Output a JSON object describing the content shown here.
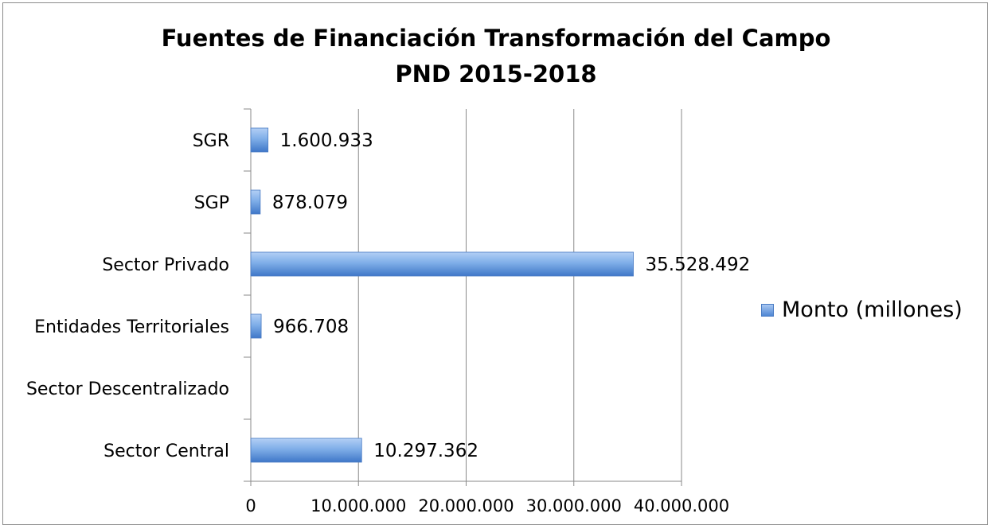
{
  "chart_data": {
    "type": "bar",
    "orientation": "horizontal",
    "title": [
      "Fuentes de Financiación Transformación del Campo",
      "PND 2015-2018"
    ],
    "categories": [
      "SGR",
      "SGP",
      "Sector Privado",
      "Entidades Territoriales",
      "Sector Descentralizado",
      "Sector Central"
    ],
    "series": [
      {
        "name": "Monto (millones)",
        "values": [
          1600933,
          878079,
          35528492,
          966708,
          0,
          10297362
        ],
        "labels": [
          "1.600.933",
          "878.079",
          "35.528.492",
          "966.708",
          "",
          "10.297.362"
        ]
      }
    ],
    "xlim": [
      0,
      40000000
    ],
    "x_ticks": [
      0,
      10000000,
      20000000,
      30000000,
      40000000
    ],
    "x_tick_labels": [
      "0",
      "10.000.000",
      "20.000.000",
      "30.000.000",
      "40.000.000"
    ],
    "grid": "vertical",
    "legend_position": "right",
    "bar_color": "#5b8fd8"
  }
}
